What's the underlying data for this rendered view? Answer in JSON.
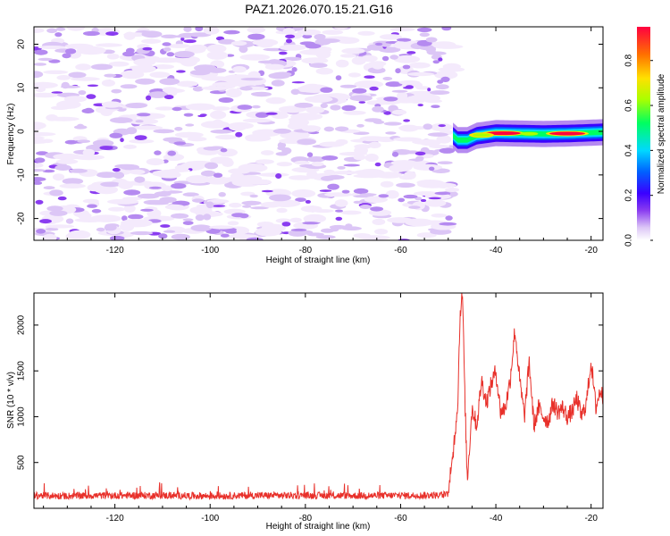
{
  "title": "PAZ1.2026.070.15.21.G16",
  "colors": {
    "snr_line": "#e8302a",
    "axis": "#000000",
    "background": "#ffffff",
    "colormap": [
      "#f4eafc",
      "#dcc6f6",
      "#b58af0",
      "#8a3cf0",
      "#3a00ff",
      "#0060ff",
      "#00d8ff",
      "#00ff60",
      "#aaff00",
      "#ffe000",
      "#ff7000",
      "#ff0040"
    ]
  },
  "chart_data": [
    {
      "type": "heatmap",
      "title": "PAZ1.2026.070.15.21.G16",
      "xlabel": "Height of straight line (km)",
      "ylabel": "Frequency (Hz)",
      "xlim": [
        -137,
        -17.5
      ],
      "ylim": [
        -25,
        24
      ],
      "xticks": [
        -120,
        -100,
        -80,
        -60,
        -40,
        -20
      ],
      "yticks": [
        -20,
        -10,
        0,
        10,
        20
      ],
      "noise_region_x": [
        -137,
        -49
      ],
      "noise_amplitude_range": [
        0.0,
        0.2
      ],
      "signal_band": {
        "x_range": [
          -49,
          -17.5
        ],
        "center_frequency_hz": [
          [
            -49,
            -1.0
          ],
          [
            -48,
            -2.0
          ],
          [
            -46,
            -2.0
          ],
          [
            -44,
            -1.0
          ],
          [
            -40,
            -0.4
          ],
          [
            -35,
            -0.5
          ],
          [
            -30,
            -0.6
          ],
          [
            -25,
            -0.5
          ],
          [
            -20,
            -0.3
          ],
          [
            -17.5,
            -0.2
          ]
        ],
        "peaks": [
          {
            "x": -38.5,
            "amplitude": 0.95
          },
          {
            "x": -25,
            "amplitude": 0.95
          },
          {
            "x": -43,
            "amplitude": 0.75
          },
          {
            "x": -33,
            "amplitude": 0.6
          }
        ]
      },
      "colorbar": {
        "label": "Normalized spectral amplitude",
        "range": [
          0.0,
          0.95
        ],
        "ticks": [
          "0.0",
          "0.2",
          "0.4",
          "0.6",
          "0.8"
        ]
      }
    },
    {
      "type": "line",
      "xlabel": "Height of straight line (km)",
      "ylabel": "SNR (10 * v/v)",
      "xlim": [
        -137,
        -17.5
      ],
      "ylim": [
        0,
        2350
      ],
      "xticks": [
        -120,
        -100,
        -80,
        -60,
        -40,
        -20
      ],
      "yticks": [
        500,
        1000,
        1500,
        2000
      ],
      "series": [
        {
          "name": "SNR",
          "x": [
            -137,
            -130,
            -120,
            -110,
            -100,
            -90,
            -80,
            -70,
            -60,
            -52,
            -50,
            -49,
            -48,
            -47.5,
            -47,
            -46.5,
            -46,
            -45,
            -44,
            -43,
            -42,
            -41,
            -40,
            -39,
            -38,
            -37,
            -36,
            -35,
            -34,
            -33,
            -32,
            -31,
            -30,
            -29,
            -28,
            -27,
            -26,
            -25,
            -24,
            -23,
            -22,
            -21,
            -20,
            -19,
            -18,
            -17.5
          ],
          "values": [
            140,
            135,
            140,
            140,
            135,
            140,
            140,
            138,
            140,
            142,
            150,
            600,
            1150,
            2150,
            2330,
            1200,
            300,
            1100,
            900,
            1400,
            1150,
            1350,
            1500,
            1050,
            1100,
            1400,
            1950,
            1400,
            1000,
            1600,
            900,
            1100,
            1000,
            950,
            1150,
            1050,
            1100,
            1000,
            1050,
            1200,
            1000,
            1150,
            1600,
            1100,
            1300,
            1200
          ]
        }
      ]
    }
  ]
}
